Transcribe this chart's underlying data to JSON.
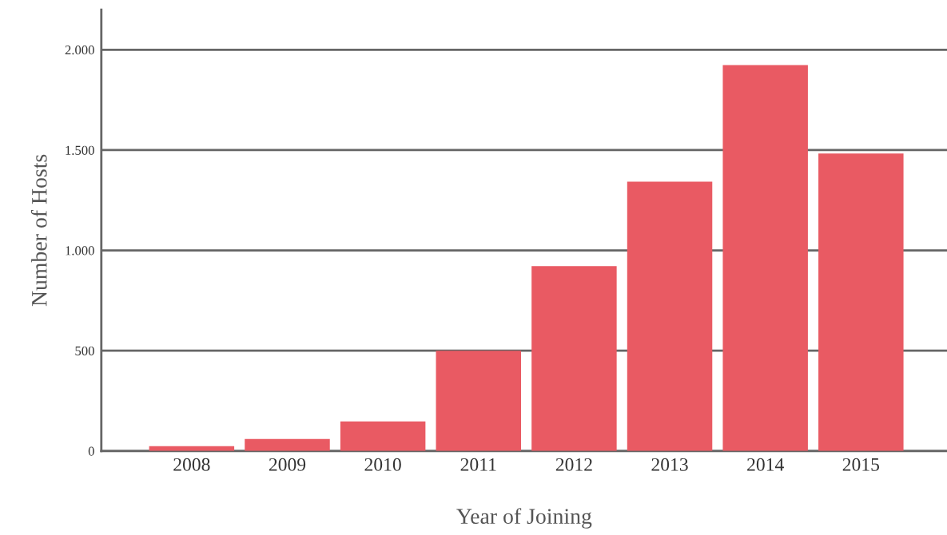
{
  "chart_data": {
    "type": "bar",
    "xlabel": "Year of Joining",
    "ylabel": "Number of Hosts",
    "categories": [
      "2008",
      "2009",
      "2010",
      "2011",
      "2012",
      "2013",
      "2014",
      "2015"
    ],
    "values": [
      24,
      60,
      148,
      500,
      922,
      1343,
      1924,
      1483
    ],
    "color": "#e95a63",
    "ylim": [
      0,
      2200
    ],
    "yticks": [
      0,
      {
        "value": 500,
        "label": "500"
      },
      {
        "value": 1000,
        "label": "1.000"
      },
      {
        "value": 1500,
        "label": "1.500"
      },
      {
        "value": 2000,
        "label": "2.000"
      }
    ],
    "grid": "y",
    "legend": false
  }
}
